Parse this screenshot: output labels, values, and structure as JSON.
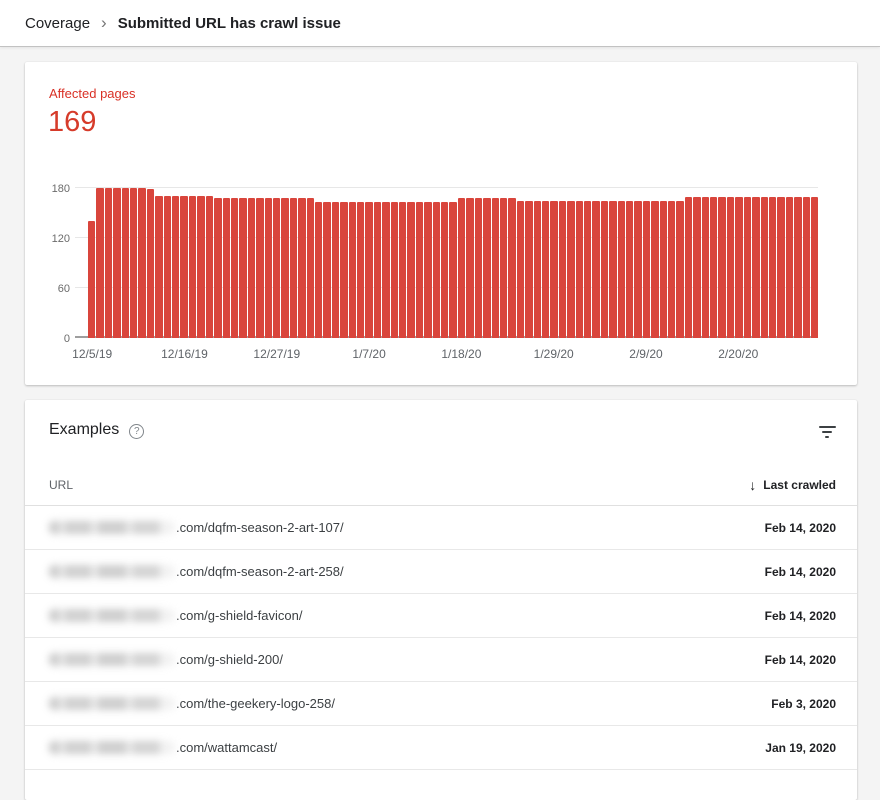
{
  "breadcrumb": {
    "parent": "Coverage",
    "separator": "›",
    "current": "Submitted URL has crawl issue"
  },
  "summary": {
    "label": "Affected pages",
    "count": "169"
  },
  "colors": {
    "accent_red": "#d93025",
    "bar_red": "#d9453c",
    "page_background": "#f4f4f4",
    "divider": "#e8e8e8"
  },
  "chart_data": {
    "type": "bar",
    "title": "Affected pages",
    "ylabel": "",
    "xlabel": "",
    "ylim": [
      0,
      180
    ],
    "y_ticks": [
      0,
      60,
      120,
      180
    ],
    "grid": true,
    "legend_position": "none",
    "x_tick_labels": [
      "12/5/19",
      "12/16/19",
      "12/27/19",
      "1/7/20",
      "1/18/20",
      "1/29/20",
      "2/9/20",
      "2/20/20"
    ],
    "x_tick_indices": [
      0,
      11,
      22,
      33,
      44,
      55,
      66,
      77
    ],
    "dates": [
      "12/5/19",
      "12/6/19",
      "12/7/19",
      "12/8/19",
      "12/9/19",
      "12/10/19",
      "12/11/19",
      "12/12/19",
      "12/13/19",
      "12/14/19",
      "12/15/19",
      "12/16/19",
      "12/17/19",
      "12/18/19",
      "12/19/19",
      "12/20/19",
      "12/21/19",
      "12/22/19",
      "12/23/19",
      "12/24/19",
      "12/25/19",
      "12/26/19",
      "12/27/19",
      "12/28/19",
      "12/29/19",
      "12/30/19",
      "12/31/19",
      "1/1/20",
      "1/2/20",
      "1/3/20",
      "1/4/20",
      "1/5/20",
      "1/6/20",
      "1/7/20",
      "1/8/20",
      "1/9/20",
      "1/10/20",
      "1/11/20",
      "1/12/20",
      "1/13/20",
      "1/14/20",
      "1/15/20",
      "1/16/20",
      "1/17/20",
      "1/18/20",
      "1/19/20",
      "1/20/20",
      "1/21/20",
      "1/22/20",
      "1/23/20",
      "1/24/20",
      "1/25/20",
      "1/26/20",
      "1/27/20",
      "1/28/20",
      "1/29/20",
      "1/30/20",
      "1/31/20",
      "2/1/20",
      "2/2/20",
      "2/3/20",
      "2/4/20",
      "2/5/20",
      "2/6/20",
      "2/7/20",
      "2/8/20",
      "2/9/20",
      "2/10/20",
      "2/11/20",
      "2/12/20",
      "2/13/20",
      "2/14/20",
      "2/15/20",
      "2/16/20",
      "2/17/20",
      "2/18/20",
      "2/19/20",
      "2/20/20",
      "2/21/20",
      "2/22/20",
      "2/23/20",
      "2/24/20",
      "2/25/20",
      "2/26/20",
      "2/27/20",
      "2/28/20",
      "2/29/20"
    ],
    "values": [
      140,
      180,
      180,
      180,
      180,
      180,
      180,
      179,
      171,
      171,
      171,
      171,
      171,
      171,
      171,
      168,
      168,
      168,
      168,
      168,
      168,
      168,
      168,
      168,
      168,
      168,
      168,
      163,
      163,
      163,
      163,
      163,
      163,
      163,
      163,
      163,
      163,
      163,
      163,
      163,
      163,
      163,
      163,
      163,
      168,
      168,
      168,
      168,
      168,
      168,
      168,
      165,
      165,
      165,
      165,
      165,
      165,
      165,
      165,
      165,
      165,
      165,
      165,
      165,
      165,
      165,
      165,
      165,
      165,
      165,
      165,
      169,
      169,
      169,
      169,
      169,
      169,
      169,
      169,
      169,
      169,
      169,
      169,
      169,
      169,
      169,
      169
    ]
  },
  "examples": {
    "title": "Examples",
    "help_glyph": "?",
    "sort_glyph": "↓",
    "columns": {
      "url": "URL",
      "last_crawled": "Last crawled"
    },
    "rows": [
      {
        "url_suffix": ".com/dqfm-season-2-art-107/",
        "last_crawled": "Feb 14, 2020"
      },
      {
        "url_suffix": ".com/dqfm-season-2-art-258/",
        "last_crawled": "Feb 14, 2020"
      },
      {
        "url_suffix": ".com/g-shield-favicon/",
        "last_crawled": "Feb 14, 2020"
      },
      {
        "url_suffix": ".com/g-shield-200/",
        "last_crawled": "Feb 14, 2020"
      },
      {
        "url_suffix": ".com/the-geekery-logo-258/",
        "last_crawled": "Feb 3, 2020"
      },
      {
        "url_suffix": ".com/wattamcast/",
        "last_crawled": "Jan 19, 2020"
      }
    ]
  }
}
